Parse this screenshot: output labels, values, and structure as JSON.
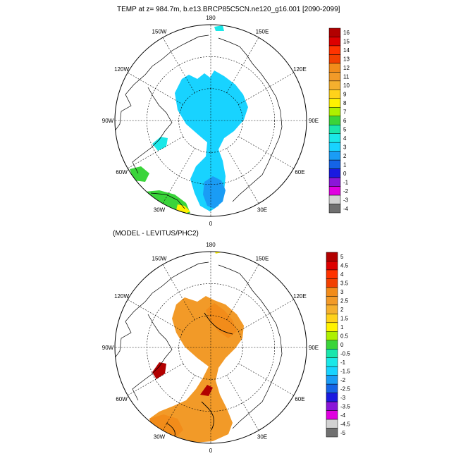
{
  "chart_data": [
    {
      "type": "polar-map",
      "title": "TEMP at z= 984.7m, b.e13.BRCP85C5CN.ne120_g16.001 [2090-2099]",
      "longitude_labels": [
        "180",
        "150E",
        "120E",
        "90E",
        "60E",
        "30E",
        "0",
        "30W",
        "60W",
        "90W",
        "120W",
        "150W"
      ],
      "colorbar": {
        "labels": [
          "16",
          "15",
          "14",
          "13",
          "12",
          "11",
          "10",
          "9",
          "8",
          "7",
          "6",
          "5",
          "4",
          "3",
          "2",
          "1",
          "0",
          "-1",
          "-2",
          "-3",
          "-4"
        ],
        "colors": [
          "#b20000",
          "#dd0000",
          "#ff3300",
          "#f24000",
          "#f28c1a",
          "#f29a28",
          "#f5b02e",
          "#ffd21a",
          "#fff200",
          "#aef000",
          "#3ad43a",
          "#19e6ac",
          "#1ae8e8",
          "#18d3ff",
          "#1a9cf5",
          "#1564e6",
          "#1a1ae0",
          "#8a16d8",
          "#e000e0",
          "#d2d2d2",
          "#707070"
        ]
      }
    },
    {
      "type": "polar-map",
      "title": "(MODEL - LEVITUS/PHC2)",
      "longitude_labels": [
        "180",
        "150E",
        "120E",
        "90E",
        "60E",
        "30E",
        "0",
        "30W",
        "60W",
        "90W",
        "120W",
        "150W"
      ],
      "colorbar": {
        "labels": [
          "5",
          "4.5",
          "4",
          "3.5",
          "3",
          "2.5",
          "2",
          "1.5",
          "1",
          "0.5",
          "0",
          "-0.5",
          "-1",
          "-1.5",
          "-2",
          "-2.5",
          "-3",
          "-3.5",
          "-4",
          "-4.5",
          "-5"
        ],
        "colors": [
          "#b20000",
          "#dd0000",
          "#ff3300",
          "#f24000",
          "#f28c1a",
          "#f29a28",
          "#f5b02e",
          "#ffd21a",
          "#fff200",
          "#aef000",
          "#3ad43a",
          "#19e6ac",
          "#1ae8e8",
          "#18d3ff",
          "#1a9cf5",
          "#1564e6",
          "#1a1ae0",
          "#8a16d8",
          "#e000e0",
          "#d2d2d2",
          "#707070"
        ]
      }
    }
  ]
}
